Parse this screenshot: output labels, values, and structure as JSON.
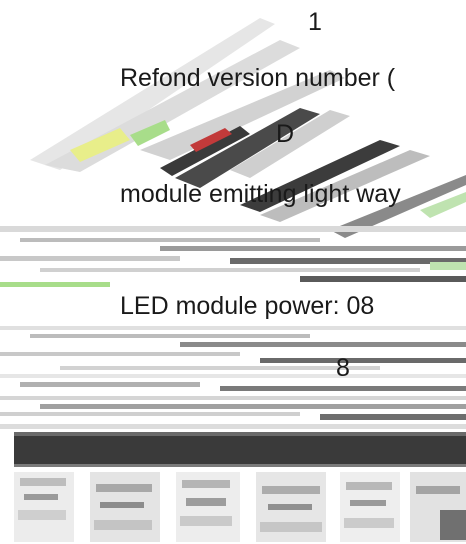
{
  "labels": {
    "top_number": "1",
    "version_line": "Refond version number (",
    "version_letter": "D",
    "emitting_line": "module emitting light way",
    "power_line": "LED module power:   08",
    "power_digit": "8"
  },
  "colors": {
    "text": "#1a1a1a",
    "dark_band": "#3a3a3a",
    "light_stripe": "#d4d4d4",
    "accent_yellow": "#e8ee8a",
    "accent_green": "#a8dd8a"
  }
}
